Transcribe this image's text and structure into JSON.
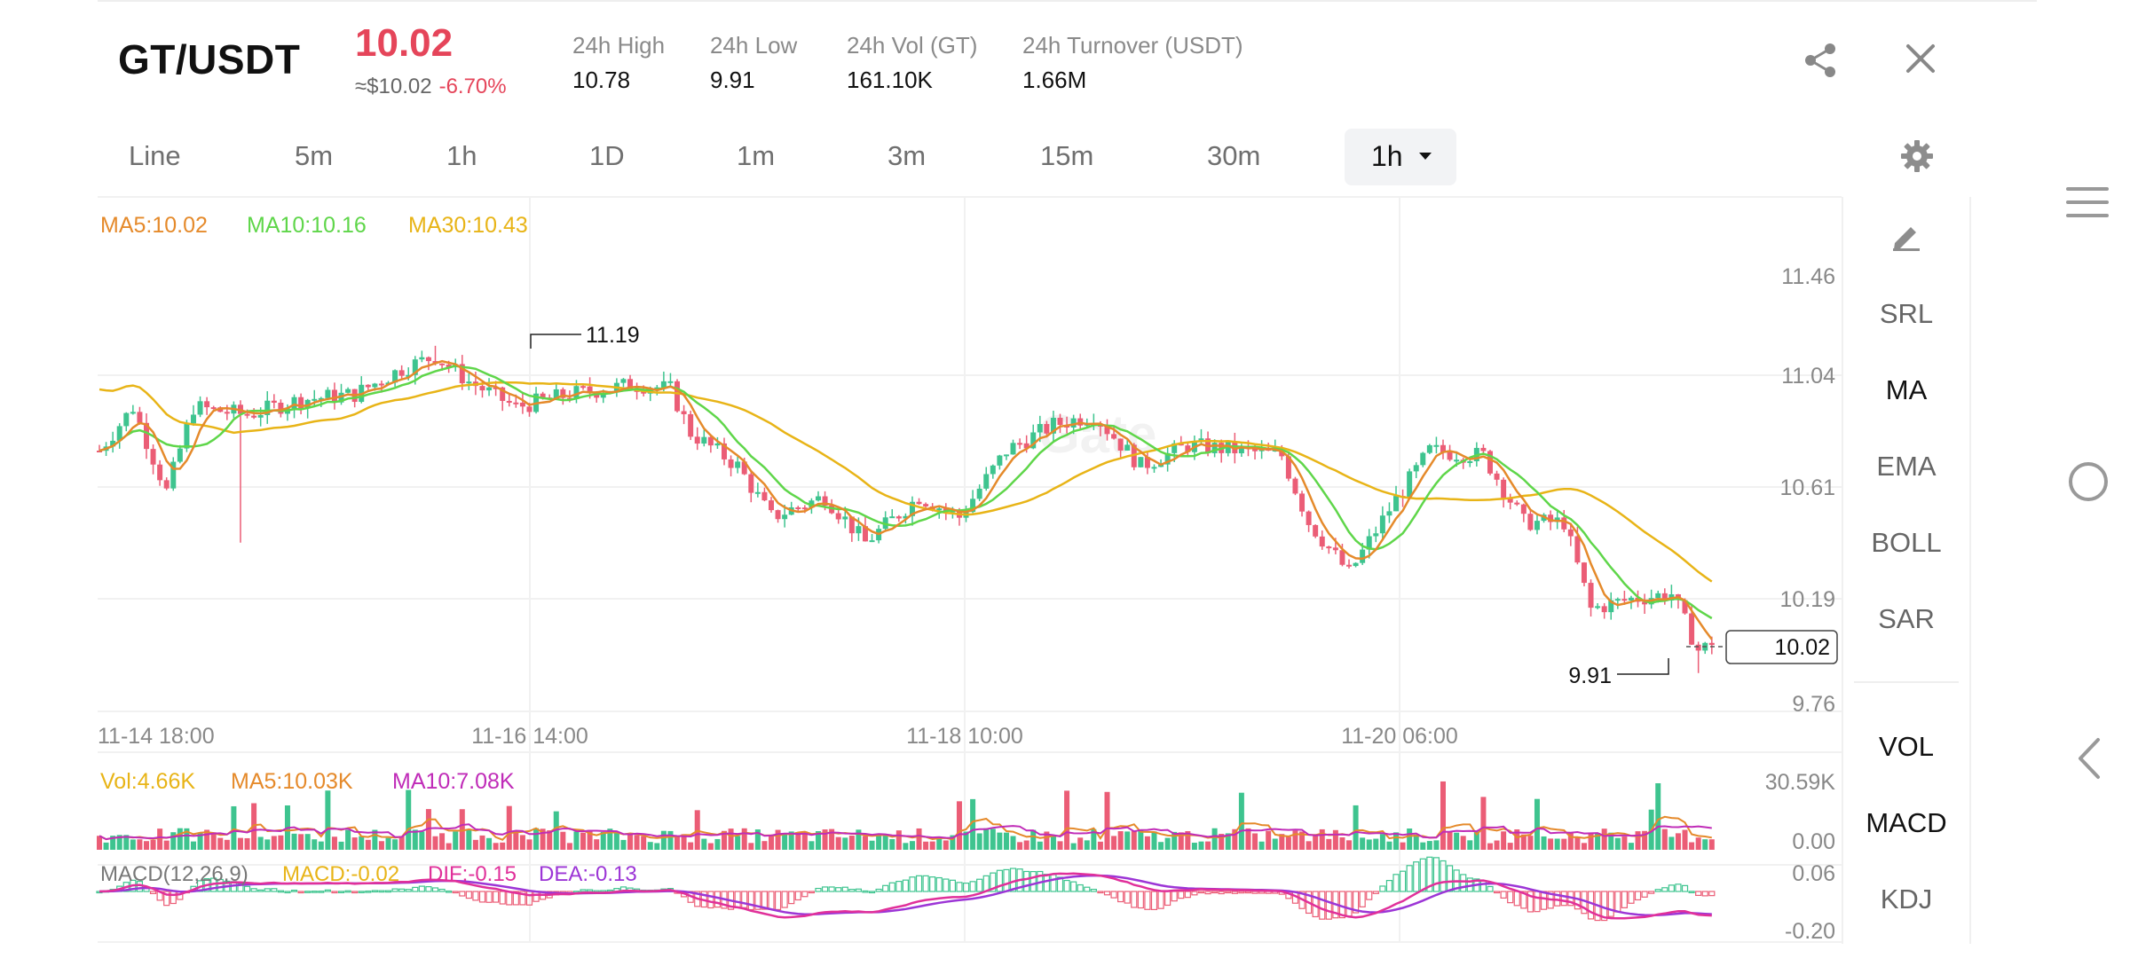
{
  "header": {
    "pair": "GT/USDT",
    "price": "10.02",
    "fiat_price": "≈$10.02",
    "change": "-6.70%",
    "stats": [
      {
        "label": "24h High",
        "value": "10.78"
      },
      {
        "label": "24h Low",
        "value": "9.91"
      },
      {
        "label": "24h Vol (GT)",
        "value": "161.10K"
      },
      {
        "label": "24h Turnover (USDT)",
        "value": "1.66M"
      }
    ],
    "icons": {
      "share": "share-icon",
      "close": "close-icon",
      "settings": "gear-icon"
    }
  },
  "intervals": [
    "Line",
    "5m",
    "1h",
    "1D",
    "1m",
    "3m",
    "15m",
    "30m"
  ],
  "active_interval": "1h",
  "indicators": {
    "ma5": "MA5:10.02",
    "ma10": "MA10:10.16",
    "ma30": "MA30:10.43"
  },
  "volume_legend": {
    "vol": "Vol:4.66K",
    "ma5": "MA5:10.03K",
    "ma10": "MA10:7.08K"
  },
  "macd_legend": {
    "title": "MACD(12,26,9)",
    "macd": "MACD:-0.02",
    "dif": "DIF:-0.15",
    "dea": "DEA:-0.13"
  },
  "side_panel": {
    "draw_icon": "pencil-icon",
    "main_items": [
      "SRL",
      "MA",
      "EMA",
      "BOLL",
      "SAR"
    ],
    "main_active": "MA",
    "sub_items": [
      "VOL",
      "MACD",
      "KDJ"
    ]
  },
  "watermark": "Gate",
  "colors": {
    "up": "#3ec48f",
    "down": "#eb5d76",
    "ma5": "#e58a2b",
    "ma10": "#5fd64a",
    "ma30": "#e8b417",
    "dif": "#e0309a",
    "dea": "#9c35d6",
    "price_red": "#e5455a"
  },
  "chart_data": {
    "type": "candlestick",
    "price_axis": {
      "ticks": [
        11.46,
        11.04,
        10.61,
        10.19,
        9.76
      ],
      "min": 9.76,
      "max": 11.46
    },
    "time_axis": [
      "11-14 18:00",
      "11-16 14:00",
      "11-18 10:00",
      "11-20 06:00"
    ],
    "high_marker": "11.19",
    "low_marker": "9.91",
    "last_price": "10.02",
    "volume_axis": [
      "30.59K",
      "0.00"
    ],
    "macd_axis": [
      "0.06",
      "-0.20"
    ],
    "anchors": [
      {
        "i": 0,
        "p": 10.78
      },
      {
        "i": 5,
        "p": 10.95
      },
      {
        "i": 10,
        "p": 10.62
      },
      {
        "i": 14,
        "p": 10.95
      },
      {
        "i": 22,
        "p": 10.92
      },
      {
        "i": 30,
        "p": 10.98
      },
      {
        "i": 38,
        "p": 11.0
      },
      {
        "i": 45,
        "p": 11.1
      },
      {
        "i": 50,
        "p": 11.15
      },
      {
        "i": 55,
        "p": 11.05
      },
      {
        "i": 62,
        "p": 10.95
      },
      {
        "i": 70,
        "p": 11.0
      },
      {
        "i": 80,
        "p": 11.04
      },
      {
        "i": 85,
        "p": 11.02
      },
      {
        "i": 88,
        "p": 10.85
      },
      {
        "i": 95,
        "p": 10.72
      },
      {
        "i": 100,
        "p": 10.52
      },
      {
        "i": 108,
        "p": 10.6
      },
      {
        "i": 114,
        "p": 10.42
      },
      {
        "i": 122,
        "p": 10.6
      },
      {
        "i": 128,
        "p": 10.52
      },
      {
        "i": 135,
        "p": 10.78
      },
      {
        "i": 142,
        "p": 10.88
      },
      {
        "i": 148,
        "p": 10.92
      },
      {
        "i": 155,
        "p": 10.72
      },
      {
        "i": 162,
        "p": 10.8
      },
      {
        "i": 170,
        "p": 10.78
      },
      {
        "i": 176,
        "p": 10.76
      },
      {
        "i": 180,
        "p": 10.5
      },
      {
        "i": 186,
        "p": 10.3
      },
      {
        "i": 192,
        "p": 10.55
      },
      {
        "i": 198,
        "p": 10.78
      },
      {
        "i": 206,
        "p": 10.76
      },
      {
        "i": 212,
        "p": 10.5
      },
      {
        "i": 218,
        "p": 10.5
      },
      {
        "i": 222,
        "p": 10.16
      },
      {
        "i": 228,
        "p": 10.2
      },
      {
        "i": 234,
        "p": 10.22
      },
      {
        "i": 238,
        "p": 10.0
      },
      {
        "i": 240,
        "p": 10.02
      }
    ]
  }
}
